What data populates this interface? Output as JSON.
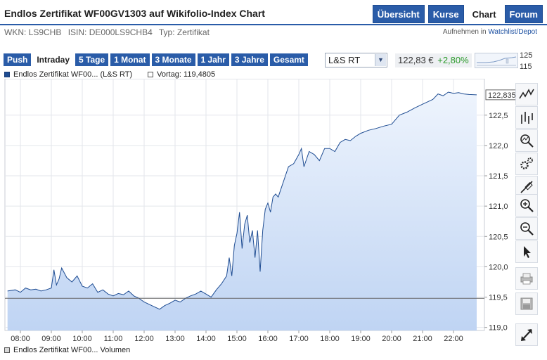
{
  "page": {
    "title": "Endlos Zertifikat WF00GV1303 auf Wikifolio-Index Chart",
    "nav": [
      "Übersicht",
      "Kurse",
      "Chart",
      "Forum"
    ],
    "active_nav": "Chart",
    "wkn": "WKN: LS9CHB",
    "isin": "ISIN: DE000LS9CHB4",
    "typ": "Typ: Zertifikat",
    "watch_prefix": "Aufnehmen in",
    "watch_link": "Watchlist/Depot"
  },
  "toolbar": {
    "ranges": [
      "Push",
      "Intraday",
      "5 Tage",
      "1 Monat",
      "3 Monate",
      "1 Jahr",
      "3 Jahre",
      "Gesamt"
    ],
    "active_range": "Intraday",
    "exchange": "L&S RT",
    "price": "122,83 €",
    "change": "+2,80%",
    "spark_high": "125",
    "spark_low": "115"
  },
  "legend": {
    "series": "Endlos Zertifikat WF00... (L&S RT)",
    "previous_close": "Vortag: 119,4805"
  },
  "volume_legend": "Endlos Zertifikat WF00... Volumen",
  "tools": [
    "chart-type-line-icon",
    "chart-type-ohlc-icon",
    "indicator-icon",
    "settings-icon",
    "draw-line-icon",
    "zoom-in-icon",
    "zoom-out-icon",
    "pointer-icon",
    "print-icon",
    "save-icon",
    "fullscreen-icon"
  ],
  "colors": {
    "accent": "#2a5ca8",
    "line": "#1e4c92",
    "area": "#c8daf5",
    "positive": "#2a9a2a"
  },
  "chart_data": {
    "type": "area",
    "x_label": "",
    "y_label": "",
    "xticks": [
      "08:00",
      "09:00",
      "10:00",
      "11:00",
      "12:00",
      "13:00",
      "14:00",
      "15:00",
      "16:00",
      "17:00",
      "18:00",
      "19:00",
      "20:00",
      "21:00",
      "22:00"
    ],
    "yticks": [
      "119,0",
      "119,5",
      "120,0",
      "120,5",
      "121,0",
      "121,5",
      "122,0",
      "122,5"
    ],
    "ylim": [
      118.95,
      123.1
    ],
    "xlim": [
      "07:30",
      "23:00"
    ],
    "previous_close": 119.4805,
    "last_value_label": "122,835",
    "grid": true,
    "series": [
      {
        "name": "Endlos Zertifikat WF00... (L&S RT)",
        "x": [
          "07:35",
          "07:50",
          "08:00",
          "08:10",
          "08:20",
          "08:30",
          "08:40",
          "08:50",
          "09:00",
          "09:05",
          "09:10",
          "09:15",
          "09:20",
          "09:30",
          "09:40",
          "09:50",
          "10:00",
          "10:10",
          "10:20",
          "10:30",
          "10:40",
          "10:50",
          "11:00",
          "11:10",
          "11:20",
          "11:30",
          "11:40",
          "11:50",
          "12:00",
          "12:10",
          "12:20",
          "12:30",
          "12:40",
          "12:50",
          "13:00",
          "13:10",
          "13:20",
          "13:30",
          "13:40",
          "13:50",
          "14:00",
          "14:10",
          "14:20",
          "14:30",
          "14:40",
          "14:45",
          "14:50",
          "14:55",
          "15:00",
          "15:05",
          "15:10",
          "15:15",
          "15:20",
          "15:25",
          "15:30",
          "15:35",
          "15:40",
          "15:45",
          "15:50",
          "15:55",
          "16:00",
          "16:05",
          "16:10",
          "16:15",
          "16:20",
          "16:30",
          "16:40",
          "16:50",
          "17:00",
          "17:05",
          "17:10",
          "17:20",
          "17:30",
          "17:40",
          "17:50",
          "18:00",
          "18:10",
          "18:20",
          "18:30",
          "18:40",
          "18:50",
          "19:00",
          "19:15",
          "19:30",
          "19:45",
          "20:00",
          "20:15",
          "20:30",
          "20:45",
          "21:00",
          "21:10",
          "21:20",
          "21:30",
          "21:40",
          "21:50",
          "22:00",
          "22:10",
          "22:20",
          "22:30",
          "22:45"
        ],
        "values": [
          119.6,
          119.62,
          119.58,
          119.65,
          119.62,
          119.63,
          119.6,
          119.62,
          119.65,
          119.95,
          119.7,
          119.8,
          119.98,
          119.82,
          119.75,
          119.85,
          119.68,
          119.65,
          119.72,
          119.58,
          119.62,
          119.55,
          119.52,
          119.56,
          119.54,
          119.6,
          119.52,
          119.48,
          119.42,
          119.38,
          119.34,
          119.3,
          119.36,
          119.4,
          119.45,
          119.42,
          119.48,
          119.52,
          119.55,
          119.6,
          119.55,
          119.5,
          119.62,
          119.72,
          119.85,
          120.15,
          119.85,
          120.35,
          120.55,
          120.9,
          120.3,
          120.7,
          120.85,
          120.4,
          120.6,
          120.15,
          120.6,
          119.92,
          120.6,
          120.95,
          121.05,
          120.9,
          121.15,
          121.2,
          121.15,
          121.4,
          121.65,
          121.7,
          121.85,
          121.95,
          121.65,
          121.9,
          121.85,
          121.75,
          121.95,
          121.95,
          121.9,
          122.05,
          122.1,
          122.08,
          122.15,
          122.2,
          122.25,
          122.28,
          122.32,
          122.35,
          122.5,
          122.55,
          122.62,
          122.68,
          122.72,
          122.76,
          122.85,
          122.82,
          122.88,
          122.86,
          122.87,
          122.85,
          122.84,
          122.835
        ]
      }
    ]
  }
}
